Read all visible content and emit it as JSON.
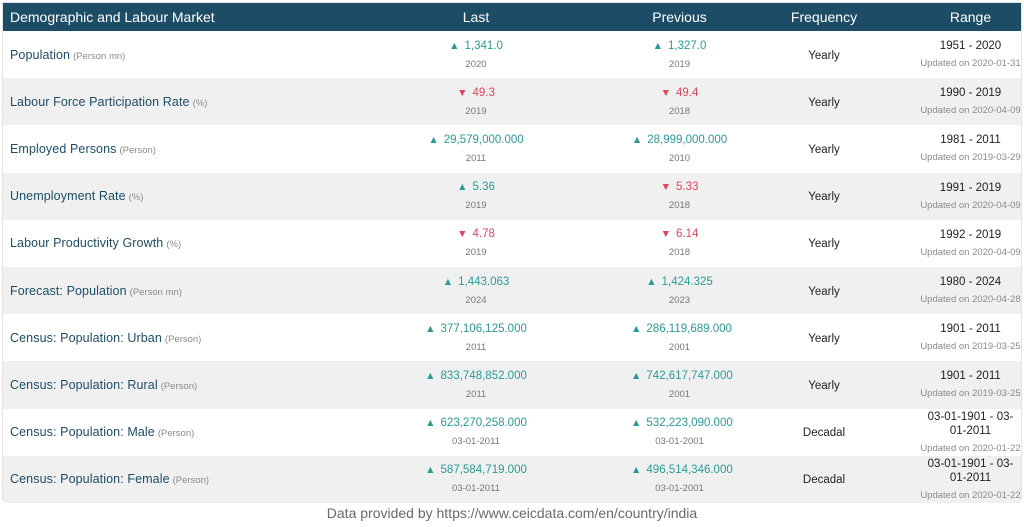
{
  "header": {
    "name": "Demographic and Labour Market",
    "last": "Last",
    "previous": "Previous",
    "frequency": "Frequency",
    "range": "Range"
  },
  "rows": [
    {
      "name": "Population",
      "unit": "(Person mn)",
      "last": {
        "value": "1,341.0",
        "date": "2020",
        "dir": "up"
      },
      "previous": {
        "value": "1,327.0",
        "date": "2019",
        "dir": "up"
      },
      "frequency": "Yearly",
      "range": "1951 - 2020",
      "updated": "Updated on 2020-01-31"
    },
    {
      "name": "Labour Force Participation Rate",
      "unit": "(%)",
      "last": {
        "value": "49.3",
        "date": "2019",
        "dir": "down"
      },
      "previous": {
        "value": "49.4",
        "date": "2018",
        "dir": "down"
      },
      "frequency": "Yearly",
      "range": "1990 - 2019",
      "updated": "Updated on 2020-04-09"
    },
    {
      "name": "Employed Persons",
      "unit": "(Person)",
      "last": {
        "value": "29,579,000.000",
        "date": "2011",
        "dir": "up"
      },
      "previous": {
        "value": "28,999,000.000",
        "date": "2010",
        "dir": "up"
      },
      "frequency": "Yearly",
      "range": "1981 - 2011",
      "updated": "Updated on 2019-03-29"
    },
    {
      "name": "Unemployment Rate",
      "unit": "(%)",
      "last": {
        "value": "5.36",
        "date": "2019",
        "dir": "up"
      },
      "previous": {
        "value": "5.33",
        "date": "2018",
        "dir": "down"
      },
      "frequency": "Yearly",
      "range": "1991 - 2019",
      "updated": "Updated on 2020-04-09"
    },
    {
      "name": "Labour Productivity Growth",
      "unit": "(%)",
      "last": {
        "value": "4.78",
        "date": "2019",
        "dir": "down"
      },
      "previous": {
        "value": "6.14",
        "date": "2018",
        "dir": "down"
      },
      "frequency": "Yearly",
      "range": "1992 - 2019",
      "updated": "Updated on 2020-04-09"
    },
    {
      "name": "Forecast: Population",
      "unit": "(Person mn)",
      "last": {
        "value": "1,443.063",
        "date": "2024",
        "dir": "up"
      },
      "previous": {
        "value": "1,424.325",
        "date": "2023",
        "dir": "up"
      },
      "frequency": "Yearly",
      "range": "1980 - 2024",
      "updated": "Updated on 2020-04-28"
    },
    {
      "name": "Census: Population: Urban",
      "unit": "(Person)",
      "last": {
        "value": "377,106,125.000",
        "date": "2011",
        "dir": "up"
      },
      "previous": {
        "value": "286,119,689.000",
        "date": "2001",
        "dir": "up"
      },
      "frequency": "Yearly",
      "range": "1901 - 2011",
      "updated": "Updated on 2019-03-25"
    },
    {
      "name": "Census: Population: Rural",
      "unit": "(Person)",
      "last": {
        "value": "833,748,852.000",
        "date": "2011",
        "dir": "up"
      },
      "previous": {
        "value": "742,617,747.000",
        "date": "2001",
        "dir": "up"
      },
      "frequency": "Yearly",
      "range": "1901 - 2011",
      "updated": "Updated on 2019-03-25"
    },
    {
      "name": "Census: Population: Male",
      "unit": "(Person)",
      "last": {
        "value": "623,270,258.000",
        "date": "03-01-2011",
        "dir": "up"
      },
      "previous": {
        "value": "532,223,090.000",
        "date": "03-01-2001",
        "dir": "up"
      },
      "frequency": "Decadal",
      "range": "03-01-1901 - 03-01-2011",
      "updated": "Updated on 2020-01-22"
    },
    {
      "name": "Census: Population: Female",
      "unit": "(Person)",
      "last": {
        "value": "587,584,719.000",
        "date": "03-01-2011",
        "dir": "up"
      },
      "previous": {
        "value": "496,514,346.000",
        "date": "03-01-2001",
        "dir": "up"
      },
      "frequency": "Decadal",
      "range": "03-01-1901 - 03-01-2011",
      "updated": "Updated on 2020-01-22"
    }
  ],
  "icons": {
    "up": "triangle-up-icon",
    "down": "triangle-down-icon"
  },
  "colors": {
    "header_bg": "#1d4c67",
    "indicator_text": "#1d4c67",
    "up": "#2a9a96",
    "down": "#e0455a",
    "row_alt": "#f0f0f0"
  },
  "footer": "Data provided by https://www.ceicdata.com/en/country/india"
}
